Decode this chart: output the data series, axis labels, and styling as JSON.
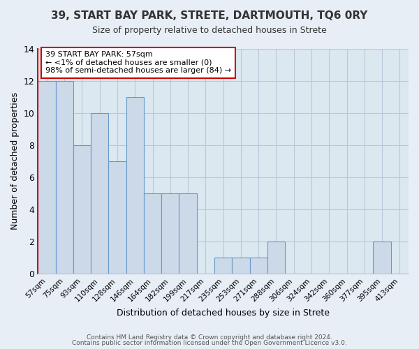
{
  "title": "39, START BAY PARK, STRETE, DARTMOUTH, TQ6 0RY",
  "subtitle": "Size of property relative to detached houses in Strete",
  "xlabel": "Distribution of detached houses by size in Strete",
  "ylabel": "Number of detached properties",
  "bar_labels": [
    "57sqm",
    "75sqm",
    "93sqm",
    "110sqm",
    "128sqm",
    "146sqm",
    "164sqm",
    "182sqm",
    "199sqm",
    "217sqm",
    "235sqm",
    "253sqm",
    "271sqm",
    "288sqm",
    "306sqm",
    "324sqm",
    "342sqm",
    "360sqm",
    "377sqm",
    "395sqm",
    "413sqm"
  ],
  "bar_values": [
    12,
    12,
    8,
    10,
    7,
    11,
    5,
    5,
    5,
    0,
    1,
    1,
    1,
    2,
    0,
    0,
    0,
    0,
    0,
    2,
    0
  ],
  "bar_color": "#ccd9e8",
  "bar_edge_color": "#6699cc",
  "annotation_text": "39 START BAY PARK: 57sqm\n← <1% of detached houses are smaller (0)\n98% of semi-detached houses are larger (84) →",
  "annotation_box_edge": "#cc0000",
  "ylim": [
    0,
    14
  ],
  "yticks": [
    0,
    2,
    4,
    6,
    8,
    10,
    12,
    14
  ],
  "footer1": "Contains HM Land Registry data © Crown copyright and database right 2024.",
  "footer2": "Contains public sector information licensed under the Open Government Licence v3.0.",
  "bg_color": "#e8eef5",
  "plot_bg_color": "#dce8f0",
  "grid_color": "#b8c8d8",
  "left_spine_color": "#cc0000",
  "title_color": "#333333"
}
